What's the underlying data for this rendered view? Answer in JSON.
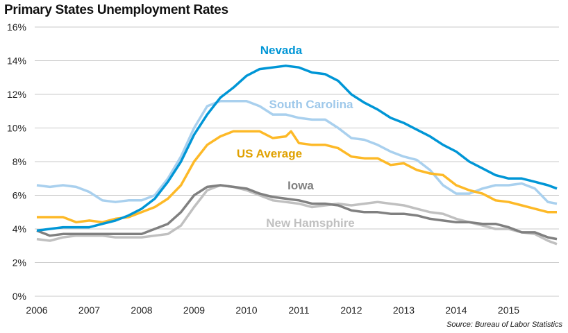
{
  "chart_data": {
    "type": "line",
    "title": "Primary  States Unemployment Rates",
    "source": "Source: Bureau of Labor Statistics",
    "xlabel": "",
    "ylabel": "",
    "xlim": [
      2006,
      2016
    ],
    "ylim": [
      0,
      16
    ],
    "x_ticks": [
      "2006",
      "2007",
      "2008",
      "2009",
      "2010",
      "2011",
      "2012",
      "2013",
      "2014",
      "2015"
    ],
    "y_ticks": [
      "0%",
      "2%",
      "4%",
      "6%",
      "8%",
      "10%",
      "12%",
      "14%",
      "16%"
    ],
    "grid": "horizontal",
    "legend": "inline labels",
    "series": [
      {
        "name": "Nevada",
        "color": "#0096d6",
        "label_color": "#0096d6",
        "x": [
          2006,
          2006.25,
          2006.5,
          2006.75,
          2007,
          2007.25,
          2007.5,
          2007.75,
          2008,
          2008.25,
          2008.5,
          2008.75,
          2009,
          2009.25,
          2009.5,
          2009.75,
          2010,
          2010.25,
          2010.5,
          2010.75,
          2011,
          2011.25,
          2011.5,
          2011.75,
          2012,
          2012.25,
          2012.5,
          2012.75,
          2013,
          2013.25,
          2013.5,
          2013.75,
          2014,
          2014.25,
          2014.5,
          2014.75,
          2015,
          2015.25,
          2015.5,
          2015.75,
          2015.92
        ],
        "y": [
          3.9,
          4.0,
          4.1,
          4.1,
          4.1,
          4.3,
          4.5,
          4.8,
          5.2,
          5.8,
          6.8,
          8.0,
          9.6,
          10.8,
          11.8,
          12.4,
          13.1,
          13.5,
          13.6,
          13.7,
          13.6,
          13.3,
          13.2,
          12.8,
          12.0,
          11.5,
          11.1,
          10.6,
          10.3,
          9.9,
          9.5,
          9.0,
          8.6,
          8.0,
          7.6,
          7.2,
          7.0,
          7.0,
          6.8,
          6.6,
          6.4
        ]
      },
      {
        "name": "South Carolina",
        "color": "#a9d0ee",
        "label_color": "#9ec8ea",
        "x": [
          2006,
          2006.25,
          2006.5,
          2006.75,
          2007,
          2007.25,
          2007.5,
          2007.75,
          2008,
          2008.25,
          2008.5,
          2008.75,
          2009,
          2009.25,
          2009.5,
          2009.75,
          2010,
          2010.25,
          2010.5,
          2010.75,
          2011,
          2011.25,
          2011.5,
          2011.75,
          2012,
          2012.25,
          2012.5,
          2012.75,
          2013,
          2013.25,
          2013.5,
          2013.75,
          2014,
          2014.25,
          2014.5,
          2014.75,
          2015,
          2015.25,
          2015.5,
          2015.75,
          2015.92
        ],
        "y": [
          6.6,
          6.5,
          6.6,
          6.5,
          6.2,
          5.7,
          5.6,
          5.7,
          5.7,
          6.0,
          7.0,
          8.3,
          10.0,
          11.3,
          11.6,
          11.6,
          11.6,
          11.3,
          10.8,
          10.8,
          10.6,
          10.5,
          10.5,
          10.0,
          9.4,
          9.3,
          9.0,
          8.6,
          8.3,
          8.1,
          7.5,
          6.6,
          6.1,
          6.1,
          6.4,
          6.6,
          6.6,
          6.7,
          6.4,
          5.6,
          5.5
        ]
      },
      {
        "name": "US Average",
        "color": "#fdb927",
        "label_color": "#e0a100",
        "x": [
          2006,
          2006.25,
          2006.5,
          2006.75,
          2007,
          2007.25,
          2007.5,
          2007.75,
          2008,
          2008.25,
          2008.5,
          2008.75,
          2009,
          2009.25,
          2009.5,
          2009.75,
          2010,
          2010.25,
          2010.5,
          2010.75,
          2010.85,
          2011,
          2011.25,
          2011.5,
          2011.75,
          2012,
          2012.25,
          2012.5,
          2012.75,
          2013,
          2013.25,
          2013.5,
          2013.75,
          2014,
          2014.25,
          2014.5,
          2014.75,
          2015,
          2015.25,
          2015.5,
          2015.75,
          2015.92
        ],
        "y": [
          4.7,
          4.7,
          4.7,
          4.4,
          4.5,
          4.4,
          4.6,
          4.7,
          5.0,
          5.3,
          5.8,
          6.6,
          8.0,
          9.0,
          9.5,
          9.8,
          9.8,
          9.8,
          9.4,
          9.5,
          9.8,
          9.1,
          9.0,
          9.0,
          8.8,
          8.3,
          8.2,
          8.2,
          7.8,
          7.9,
          7.5,
          7.3,
          7.2,
          6.6,
          6.3,
          6.1,
          5.7,
          5.6,
          5.4,
          5.2,
          5.0,
          5.0
        ]
      },
      {
        "name": "Iowa",
        "color": "#808080",
        "label_color": "#808080",
        "x": [
          2006,
          2006.25,
          2006.5,
          2006.75,
          2007,
          2007.25,
          2007.5,
          2007.75,
          2008,
          2008.25,
          2008.5,
          2008.75,
          2009,
          2009.25,
          2009.5,
          2009.75,
          2010,
          2010.25,
          2010.5,
          2010.75,
          2011,
          2011.25,
          2011.5,
          2011.75,
          2012,
          2012.25,
          2012.5,
          2012.75,
          2013,
          2013.25,
          2013.5,
          2013.75,
          2014,
          2014.25,
          2014.5,
          2014.75,
          2015,
          2015.25,
          2015.5,
          2015.75,
          2015.92
        ],
        "y": [
          3.9,
          3.6,
          3.7,
          3.7,
          3.7,
          3.7,
          3.7,
          3.7,
          3.7,
          4.0,
          4.3,
          5.0,
          6.0,
          6.5,
          6.6,
          6.5,
          6.4,
          6.1,
          5.9,
          5.8,
          5.7,
          5.5,
          5.5,
          5.4,
          5.1,
          5.0,
          5.0,
          4.9,
          4.9,
          4.8,
          4.6,
          4.5,
          4.4,
          4.4,
          4.3,
          4.3,
          4.1,
          3.8,
          3.8,
          3.5,
          3.4
        ]
      },
      {
        "name": "New Hamsphire",
        "color": "#c0c0c0",
        "label_color": "#c0c0c0",
        "x": [
          2006,
          2006.25,
          2006.5,
          2006.75,
          2007,
          2007.25,
          2007.5,
          2007.75,
          2008,
          2008.25,
          2008.5,
          2008.75,
          2009,
          2009.25,
          2009.5,
          2009.75,
          2010,
          2010.25,
          2010.5,
          2010.75,
          2011,
          2011.25,
          2011.5,
          2011.75,
          2012,
          2012.25,
          2012.5,
          2012.75,
          2013,
          2013.25,
          2013.5,
          2013.75,
          2014,
          2014.25,
          2014.5,
          2014.75,
          2015,
          2015.25,
          2015.5,
          2015.75,
          2015.92
        ],
        "y": [
          3.4,
          3.3,
          3.5,
          3.6,
          3.6,
          3.6,
          3.5,
          3.5,
          3.5,
          3.6,
          3.7,
          4.2,
          5.3,
          6.3,
          6.6,
          6.5,
          6.3,
          6.0,
          5.7,
          5.6,
          5.5,
          5.3,
          5.4,
          5.5,
          5.4,
          5.5,
          5.6,
          5.5,
          5.4,
          5.2,
          5.0,
          4.9,
          4.6,
          4.4,
          4.2,
          4.0,
          4.0,
          3.8,
          3.7,
          3.3,
          3.1
        ]
      }
    ]
  }
}
